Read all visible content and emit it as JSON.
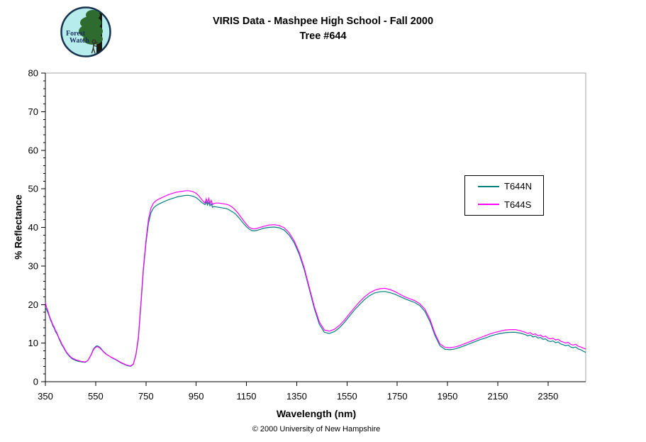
{
  "header": {
    "logo": {
      "line1": "Forest",
      "line2": "Watch",
      "bg_color": "#b7ecec"
    },
    "title_line1": "VIRIS Data - Mashpee High School - Fall 2000",
    "title_line2": "Tree #644"
  },
  "footer": {
    "copyright": "© 2000 University of New Hampshire"
  },
  "chart_data": {
    "type": "line",
    "title": "VIRIS Data - Mashpee High School - Fall 2000 — Tree #644",
    "xlabel": "Wavelength (nm)",
    "ylabel": "% Reflectance",
    "xlim": [
      350,
      2500
    ],
    "ylim": [
      0,
      80
    ],
    "x_ticks": [
      350,
      550,
      750,
      950,
      1150,
      1350,
      1550,
      1750,
      1950,
      2150,
      2350
    ],
    "y_ticks": [
      0,
      10,
      20,
      30,
      40,
      50,
      60,
      70,
      80
    ],
    "y_minor_step": 2,
    "grid": false,
    "legend_position": "right-middle",
    "frame_color": "#a6a6a6",
    "axis_color": "#000000",
    "series": [
      {
        "name": "T644N",
        "color": "#007F7F"
      },
      {
        "name": "T644S",
        "color": "#FF00FF"
      }
    ],
    "columns": [
      "wavelength_nm",
      "T644N",
      "T644S"
    ],
    "points": [
      [
        350,
        19.3,
        20.5
      ],
      [
        355,
        18.6,
        19.2
      ],
      [
        360,
        17.9,
        18.4
      ],
      [
        365,
        17.0,
        17.3
      ],
      [
        370,
        16.0,
        16.3
      ],
      [
        375,
        15.3,
        15.6
      ],
      [
        380,
        14.4,
        14.7
      ],
      [
        385,
        13.9,
        14.2
      ],
      [
        390,
        13.0,
        13.3
      ],
      [
        395,
        12.5,
        12.8
      ],
      [
        400,
        11.8,
        12.0
      ],
      [
        405,
        11.0,
        11.2
      ],
      [
        410,
        10.3,
        10.6
      ],
      [
        415,
        9.6,
        9.8
      ],
      [
        420,
        9.1,
        9.3
      ],
      [
        425,
        8.5,
        8.7
      ],
      [
        430,
        7.9,
        8.1
      ],
      [
        435,
        7.4,
        7.6
      ],
      [
        440,
        7.0,
        7.2
      ],
      [
        445,
        6.6,
        6.8
      ],
      [
        450,
        6.3,
        6.5
      ],
      [
        455,
        6.0,
        6.2
      ],
      [
        460,
        5.8,
        6.0
      ],
      [
        465,
        5.7,
        5.9
      ],
      [
        470,
        5.5,
        5.7
      ],
      [
        475,
        5.4,
        5.6
      ],
      [
        480,
        5.3,
        5.5
      ],
      [
        485,
        5.2,
        5.4
      ],
      [
        490,
        5.2,
        5.3
      ],
      [
        495,
        5.1,
        5.2
      ],
      [
        500,
        5.1,
        5.2
      ],
      [
        505,
        5.0,
        5.1
      ],
      [
        510,
        5.1,
        5.2
      ],
      [
        515,
        5.3,
        5.3
      ],
      [
        520,
        5.6,
        5.6
      ],
      [
        525,
        6.2,
        6.1
      ],
      [
        530,
        6.8,
        6.7
      ],
      [
        535,
        7.5,
        7.4
      ],
      [
        540,
        8.3,
        8.1
      ],
      [
        545,
        8.8,
        8.6
      ],
      [
        550,
        9.1,
        8.9
      ],
      [
        555,
        9.3,
        9.1
      ],
      [
        560,
        9.2,
        9.0
      ],
      [
        565,
        9.0,
        8.8
      ],
      [
        570,
        8.7,
        8.5
      ],
      [
        575,
        8.3,
        8.2
      ],
      [
        580,
        7.9,
        7.8
      ],
      [
        585,
        7.6,
        7.5
      ],
      [
        590,
        7.3,
        7.2
      ],
      [
        595,
        7.0,
        7.0
      ],
      [
        600,
        6.8,
        6.8
      ],
      [
        610,
        6.4,
        6.4
      ],
      [
        620,
        6.0,
        6.1
      ],
      [
        630,
        5.7,
        5.8
      ],
      [
        640,
        5.3,
        5.4
      ],
      [
        650,
        4.9,
        5.0
      ],
      [
        660,
        4.6,
        4.7
      ],
      [
        670,
        4.3,
        4.4
      ],
      [
        680,
        4.1,
        4.2
      ],
      [
        690,
        4.0,
        4.1
      ],
      [
        700,
        4.5,
        4.6
      ],
      [
        710,
        6.8,
        7.0
      ],
      [
        720,
        11.0,
        11.5
      ],
      [
        730,
        19.8,
        20.5
      ],
      [
        740,
        28.8,
        29.5
      ],
      [
        750,
        35.8,
        36.5
      ],
      [
        760,
        41.0,
        42.0
      ],
      [
        770,
        43.8,
        45.0
      ],
      [
        780,
        45.0,
        46.3
      ],
      [
        790,
        45.6,
        46.9
      ],
      [
        800,
        46.0,
        47.3
      ],
      [
        810,
        46.3,
        47.6
      ],
      [
        820,
        46.6,
        47.9
      ],
      [
        830,
        46.9,
        48.2
      ],
      [
        840,
        47.2,
        48.5
      ],
      [
        850,
        47.4,
        48.7
      ],
      [
        860,
        47.6,
        48.9
      ],
      [
        870,
        47.8,
        49.1
      ],
      [
        880,
        48.0,
        49.2
      ],
      [
        890,
        48.1,
        49.3
      ],
      [
        900,
        48.2,
        49.4
      ],
      [
        910,
        48.3,
        49.5
      ],
      [
        920,
        48.3,
        49.5
      ],
      [
        930,
        48.2,
        49.4
      ],
      [
        940,
        48.0,
        49.2
      ],
      [
        950,
        47.7,
        48.8
      ],
      [
        960,
        47.2,
        48.2
      ],
      [
        970,
        46.6,
        47.4
      ],
      [
        980,
        46.1,
        46.6
      ],
      [
        985,
        45.9,
        46.3
      ],
      [
        990,
        46.6,
        47.4
      ],
      [
        995,
        45.8,
        46.4
      ],
      [
        1000,
        46.5,
        47.5
      ],
      [
        1005,
        45.6,
        46.2
      ],
      [
        1010,
        46.1,
        47.0
      ],
      [
        1015,
        45.2,
        45.9
      ],
      [
        1020,
        45.4,
        46.2
      ],
      [
        1030,
        45.3,
        46.3
      ],
      [
        1040,
        45.2,
        46.3
      ],
      [
        1050,
        45.1,
        46.2
      ],
      [
        1060,
        45.0,
        46.1
      ],
      [
        1070,
        44.9,
        46.0
      ],
      [
        1080,
        44.6,
        45.8
      ],
      [
        1090,
        44.2,
        45.4
      ],
      [
        1100,
        43.8,
        44.9
      ],
      [
        1110,
        43.2,
        44.2
      ],
      [
        1120,
        42.5,
        43.4
      ],
      [
        1130,
        41.7,
        42.5
      ],
      [
        1140,
        40.9,
        41.6
      ],
      [
        1150,
        40.2,
        40.8
      ],
      [
        1160,
        39.6,
        40.1
      ],
      [
        1170,
        39.2,
        39.7
      ],
      [
        1180,
        39.1,
        39.6
      ],
      [
        1190,
        39.2,
        39.7
      ],
      [
        1200,
        39.4,
        39.9
      ],
      [
        1220,
        39.8,
        40.3
      ],
      [
        1240,
        40.0,
        40.6
      ],
      [
        1260,
        40.1,
        40.7
      ],
      [
        1280,
        39.9,
        40.5
      ],
      [
        1300,
        39.3,
        39.9
      ],
      [
        1320,
        38.0,
        38.6
      ],
      [
        1340,
        36.0,
        36.5
      ],
      [
        1360,
        33.0,
        33.5
      ],
      [
        1380,
        29.0,
        29.5
      ],
      [
        1400,
        24.0,
        24.5
      ],
      [
        1420,
        19.0,
        19.5
      ],
      [
        1440,
        14.9,
        15.5
      ],
      [
        1460,
        12.8,
        13.4
      ],
      [
        1480,
        12.5,
        13.1
      ],
      [
        1500,
        13.0,
        13.6
      ],
      [
        1520,
        14.0,
        14.6
      ],
      [
        1540,
        15.4,
        16.0
      ],
      [
        1560,
        17.0,
        17.6
      ],
      [
        1580,
        18.6,
        19.2
      ],
      [
        1600,
        20.0,
        20.7
      ],
      [
        1620,
        21.3,
        22.0
      ],
      [
        1640,
        22.3,
        23.0
      ],
      [
        1660,
        23.0,
        23.7
      ],
      [
        1680,
        23.3,
        24.1
      ],
      [
        1700,
        23.4,
        24.2
      ],
      [
        1720,
        23.1,
        23.9
      ],
      [
        1740,
        22.7,
        23.4
      ],
      [
        1760,
        22.1,
        22.7
      ],
      [
        1780,
        21.5,
        22.0
      ],
      [
        1800,
        21.0,
        21.5
      ],
      [
        1820,
        20.5,
        21.0
      ],
      [
        1840,
        19.7,
        20.2
      ],
      [
        1860,
        18.2,
        18.8
      ],
      [
        1880,
        15.6,
        16.2
      ],
      [
        1900,
        12.0,
        12.5
      ],
      [
        1920,
        9.3,
        9.8
      ],
      [
        1940,
        8.4,
        8.9
      ],
      [
        1960,
        8.3,
        8.8
      ],
      [
        1980,
        8.5,
        9.0
      ],
      [
        2000,
        8.9,
        9.4
      ],
      [
        2020,
        9.4,
        9.9
      ],
      [
        2040,
        9.9,
        10.4
      ],
      [
        2060,
        10.4,
        10.9
      ],
      [
        2080,
        10.9,
        11.4
      ],
      [
        2100,
        11.3,
        11.9
      ],
      [
        2120,
        11.8,
        12.4
      ],
      [
        2140,
        12.2,
        12.8
      ],
      [
        2160,
        12.5,
        13.1
      ],
      [
        2180,
        12.7,
        13.4
      ],
      [
        2200,
        12.8,
        13.5
      ],
      [
        2220,
        12.8,
        13.5
      ],
      [
        2240,
        12.6,
        13.2
      ],
      [
        2260,
        12.2,
        12.8
      ],
      [
        2270,
        11.9,
        12.5
      ],
      [
        2280,
        12.1,
        12.7
      ],
      [
        2290,
        11.6,
        12.2
      ],
      [
        2300,
        11.8,
        12.4
      ],
      [
        2310,
        11.3,
        11.9
      ],
      [
        2320,
        11.5,
        12.1
      ],
      [
        2330,
        11.0,
        11.6
      ],
      [
        2340,
        11.1,
        11.8
      ],
      [
        2350,
        10.6,
        11.3
      ],
      [
        2360,
        10.4,
        11.1
      ],
      [
        2370,
        10.6,
        11.3
      ],
      [
        2380,
        10.1,
        10.8
      ],
      [
        2390,
        10.3,
        11.0
      ],
      [
        2400,
        9.8,
        10.5
      ],
      [
        2410,
        9.6,
        10.3
      ],
      [
        2420,
        9.3,
        10.0
      ],
      [
        2430,
        9.5,
        10.2
      ],
      [
        2440,
        9.0,
        9.7
      ],
      [
        2450,
        8.8,
        9.5
      ],
      [
        2460,
        9.0,
        9.7
      ],
      [
        2470,
        8.5,
        9.2
      ],
      [
        2480,
        8.3,
        9.0
      ],
      [
        2490,
        7.9,
        8.7
      ],
      [
        2500,
        7.6,
        8.5
      ]
    ]
  }
}
